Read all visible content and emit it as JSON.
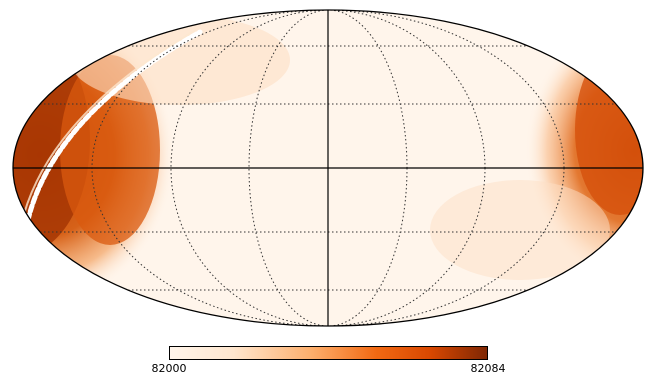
{
  "map": {
    "projection": "mollweide",
    "graticule": "dotted",
    "colormap": "Oranges",
    "features": [
      {
        "name": "band",
        "lon": 118,
        "lat": 0,
        "width_deg": 40,
        "level": 0.55
      },
      {
        "name": "band",
        "lon": -118,
        "lat": 0,
        "width_deg": 35,
        "level": 0.45
      },
      {
        "name": "streak",
        "level": 1.0
      }
    ]
  },
  "colorbar": {
    "min_label": "82000",
    "max_label": "82084",
    "min": 82000,
    "max": 82084,
    "stops": [
      "#fff5eb",
      "#fee6ce",
      "#fdae6b",
      "#f16913",
      "#d94801",
      "#7f2704"
    ]
  }
}
